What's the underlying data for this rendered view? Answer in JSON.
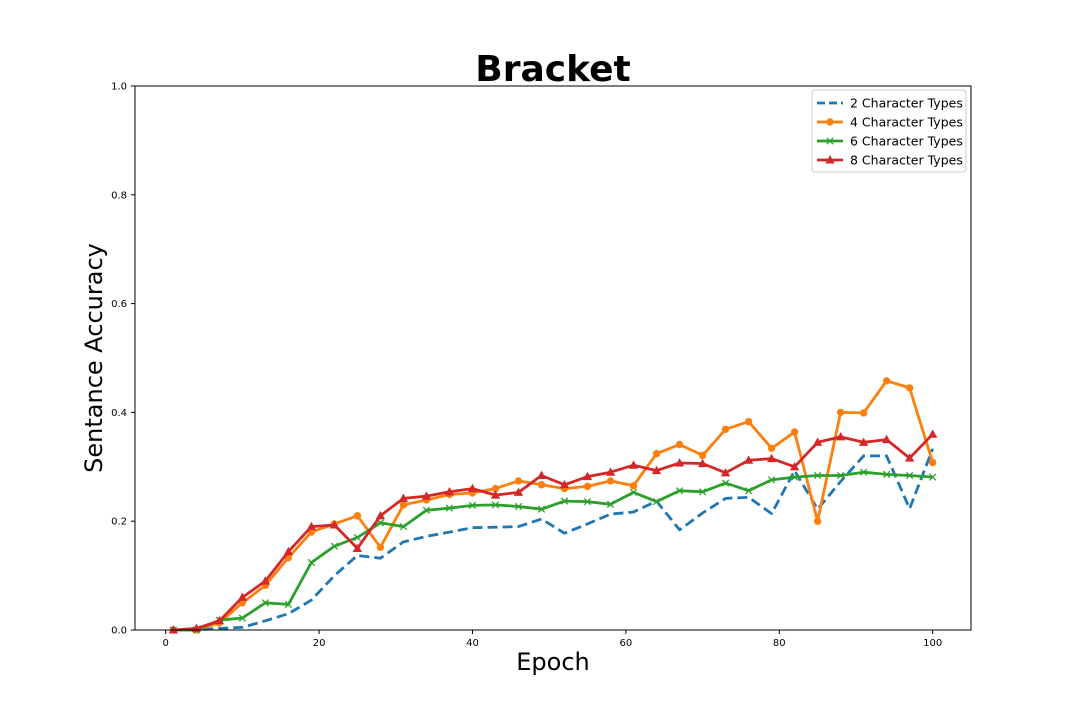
{
  "chart_data": {
    "type": "line",
    "title": "Bracket",
    "xlabel": "Epoch",
    "ylabel": "Sentance Accuracy",
    "xlim": [
      -4,
      105
    ],
    "ylim": [
      0.0,
      1.0
    ],
    "xticks": [
      0,
      20,
      40,
      60,
      80,
      100
    ],
    "yticks": [
      0.0,
      0.2,
      0.4,
      0.6,
      0.8,
      1.0
    ],
    "xtick_labels": [
      "0",
      "20",
      "40",
      "60",
      "80",
      "100"
    ],
    "ytick_labels": [
      "0.0",
      "0.2",
      "0.4",
      "0.6",
      "0.8",
      "1.0"
    ],
    "grid": false,
    "legend_position": "top-right",
    "x": [
      1,
      4,
      7,
      10,
      13,
      16,
      19,
      22,
      25,
      28,
      31,
      34,
      37,
      40,
      43,
      46,
      49,
      52,
      55,
      58,
      61,
      64,
      67,
      70,
      73,
      76,
      79,
      82,
      85,
      88,
      91,
      94,
      97,
      100
    ],
    "series": [
      {
        "name": "2 Character Types",
        "color": "#1f77b4",
        "style": "dashed",
        "marker": "none",
        "values": [
          0.0,
          0.0,
          0.003,
          0.005,
          0.017,
          0.03,
          0.055,
          0.1,
          0.137,
          0.132,
          0.162,
          0.172,
          0.18,
          0.188,
          0.189,
          0.19,
          0.204,
          0.178,
          0.195,
          0.213,
          0.217,
          0.237,
          0.184,
          0.215,
          0.242,
          0.244,
          0.214,
          0.293,
          0.222,
          0.273,
          0.32,
          0.32,
          0.223,
          0.333
        ]
      },
      {
        "name": "4 Character Types",
        "color": "#ff7f0e",
        "style": "solid",
        "marker": "circle",
        "values": [
          0.0,
          0.0,
          0.013,
          0.05,
          0.082,
          0.133,
          0.18,
          0.195,
          0.21,
          0.152,
          0.23,
          0.239,
          0.249,
          0.252,
          0.26,
          0.274,
          0.267,
          0.26,
          0.264,
          0.274,
          0.265,
          0.324,
          0.341,
          0.321,
          0.369,
          0.383,
          0.334,
          0.364,
          0.2,
          0.4,
          0.399,
          0.458,
          0.445,
          0.308
        ]
      },
      {
        "name": "6 Character Types",
        "color": "#2ca02c",
        "style": "solid",
        "marker": "x",
        "values": [
          0.0,
          0.0,
          0.018,
          0.022,
          0.05,
          0.047,
          0.124,
          0.154,
          0.17,
          0.197,
          0.19,
          0.22,
          0.224,
          0.229,
          0.23,
          0.227,
          0.222,
          0.237,
          0.236,
          0.231,
          0.253,
          0.236,
          0.256,
          0.254,
          0.27,
          0.256,
          0.276,
          0.281,
          0.284,
          0.284,
          0.29,
          0.286,
          0.284,
          0.281
        ]
      },
      {
        "name": "8 Character Types",
        "color": "#d62728",
        "style": "solid",
        "marker": "triangle",
        "values": [
          0.0,
          0.003,
          0.017,
          0.06,
          0.09,
          0.144,
          0.19,
          0.193,
          0.15,
          0.21,
          0.242,
          0.246,
          0.254,
          0.26,
          0.248,
          0.253,
          0.284,
          0.267,
          0.282,
          0.29,
          0.303,
          0.293,
          0.307,
          0.306,
          0.289,
          0.312,
          0.315,
          0.3,
          0.345,
          0.355,
          0.345,
          0.35,
          0.316,
          0.36
        ]
      }
    ]
  }
}
